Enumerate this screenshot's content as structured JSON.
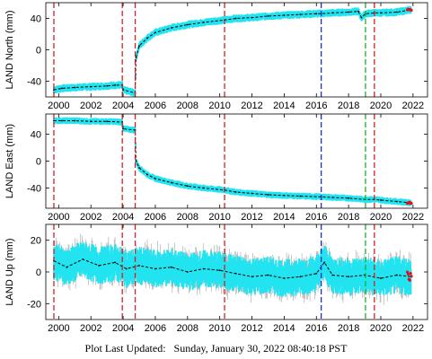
{
  "footer": {
    "label": "Plot Last Updated:",
    "date": "Sunday, January 30, 2022 08:40:18 PST"
  },
  "colors": {
    "band": "#22e3f0",
    "model": "#000000",
    "error": "#a6a6a6",
    "recent": "#e0101a",
    "line_red": "#d42020",
    "line_blue": "#1b2fd6",
    "line_green": "#1fae2d"
  },
  "chart_data": [
    {
      "type": "line",
      "ylabel": "LAND North (mm)",
      "xlim": [
        1999.2,
        2022.9
      ],
      "ylim": [
        -60,
        60
      ],
      "yticks": [
        -40,
        0,
        40
      ],
      "xticks": [
        2000,
        2002,
        2004,
        2006,
        2008,
        2010,
        2012,
        2014,
        2016,
        2018,
        2020,
        2022
      ],
      "grid": false,
      "vlines": [
        {
          "x": 1999.7,
          "color": "red"
        },
        {
          "x": 2003.95,
          "color": "red"
        },
        {
          "x": 2004.75,
          "color": "red"
        },
        {
          "x": 2010.3,
          "color": "red"
        },
        {
          "x": 2016.3,
          "color": "blue"
        },
        {
          "x": 2019.05,
          "color": "green"
        },
        {
          "x": 2019.6,
          "color": "red"
        }
      ],
      "series": [
        {
          "x": [
            1999.7,
            2000.2,
            2001.0,
            2002.0,
            2003.0,
            2003.5,
            2003.95,
            2004.0,
            2004.75,
            2004.8,
            2005.0,
            2005.5,
            2006.0,
            2007.0,
            2008.0,
            2009.0,
            2010.3,
            2011.0,
            2012.0,
            2013.0,
            2014.0,
            2015.0,
            2016.0,
            2016.3,
            2017.0,
            2018.0,
            2018.6,
            2018.8,
            2019.05,
            2019.6,
            2020.0,
            2021.0,
            2021.9
          ],
          "y": [
            -51,
            -49,
            -48,
            -47,
            -46,
            -45,
            -45,
            -51,
            -55,
            -10,
            5,
            15,
            22,
            28,
            32,
            35,
            38,
            40,
            41,
            43,
            44,
            45,
            46,
            46,
            47,
            48,
            49,
            41,
            46,
            47,
            47,
            48,
            51
          ]
        }
      ]
    },
    {
      "type": "line",
      "ylabel": "LAND East (mm)",
      "xlim": [
        1999.2,
        2022.9
      ],
      "ylim": [
        -70,
        70
      ],
      "yticks": [
        -40,
        0,
        40
      ],
      "xticks": [
        2000,
        2002,
        2004,
        2006,
        2008,
        2010,
        2012,
        2014,
        2016,
        2018,
        2020,
        2022
      ],
      "grid": false,
      "vlines": [
        {
          "x": 1999.7,
          "color": "red"
        },
        {
          "x": 2003.95,
          "color": "red"
        },
        {
          "x": 2004.75,
          "color": "red"
        },
        {
          "x": 2010.3,
          "color": "red"
        },
        {
          "x": 2016.3,
          "color": "blue"
        },
        {
          "x": 2019.05,
          "color": "green"
        },
        {
          "x": 2019.6,
          "color": "red"
        }
      ],
      "series": [
        {
          "x": [
            1999.7,
            2000.2,
            2001.0,
            2002.0,
            2003.0,
            2003.95,
            2004.0,
            2004.75,
            2004.8,
            2005.0,
            2005.5,
            2006.0,
            2007.0,
            2008.0,
            2009.0,
            2010.3,
            2011.0,
            2012.0,
            2013.0,
            2014.0,
            2015.0,
            2016.3,
            2017.0,
            2018.0,
            2019.05,
            2019.6,
            2020.0,
            2021.0,
            2021.9
          ],
          "y": [
            60,
            60,
            60,
            59,
            59,
            58,
            48,
            46,
            0,
            -10,
            -20,
            -26,
            -32,
            -37,
            -40,
            -43,
            -46,
            -48,
            -50,
            -51,
            -52,
            -53,
            -54,
            -55,
            -57,
            -57,
            -58,
            -60,
            -62
          ]
        }
      ]
    },
    {
      "type": "line",
      "ylabel": "LAND Up (mm)",
      "xlim": [
        1999.2,
        2022.9
      ],
      "ylim": [
        -30,
        30
      ],
      "yticks": [
        -20,
        0,
        20
      ],
      "xticks": [
        2000,
        2002,
        2004,
        2006,
        2008,
        2010,
        2012,
        2014,
        2016,
        2018,
        2020,
        2022
      ],
      "grid": false,
      "vlines": [
        {
          "x": 1999.7,
          "color": "red"
        },
        {
          "x": 2003.95,
          "color": "red"
        },
        {
          "x": 2004.75,
          "color": "red"
        },
        {
          "x": 2010.3,
          "color": "red"
        },
        {
          "x": 2016.3,
          "color": "blue"
        },
        {
          "x": 2019.05,
          "color": "green"
        },
        {
          "x": 2019.6,
          "color": "red"
        }
      ],
      "series": [
        {
          "x": [
            1999.7,
            2000.5,
            2001.5,
            2002.5,
            2003.5,
            2004.2,
            2005.0,
            2006.0,
            2007.0,
            2008.0,
            2009.0,
            2010.0,
            2011.0,
            2012.0,
            2013.0,
            2014.0,
            2015.0,
            2016.0,
            2016.5,
            2017.0,
            2018.0,
            2019.0,
            2020.0,
            2021.0,
            2021.9
          ],
          "y": [
            7,
            3,
            8,
            4,
            6,
            2,
            4,
            2,
            3,
            0,
            2,
            1,
            -1,
            -3,
            -2,
            -4,
            -3,
            -1,
            6,
            -2,
            -3,
            -2,
            -4,
            -2,
            -3
          ]
        }
      ]
    }
  ]
}
